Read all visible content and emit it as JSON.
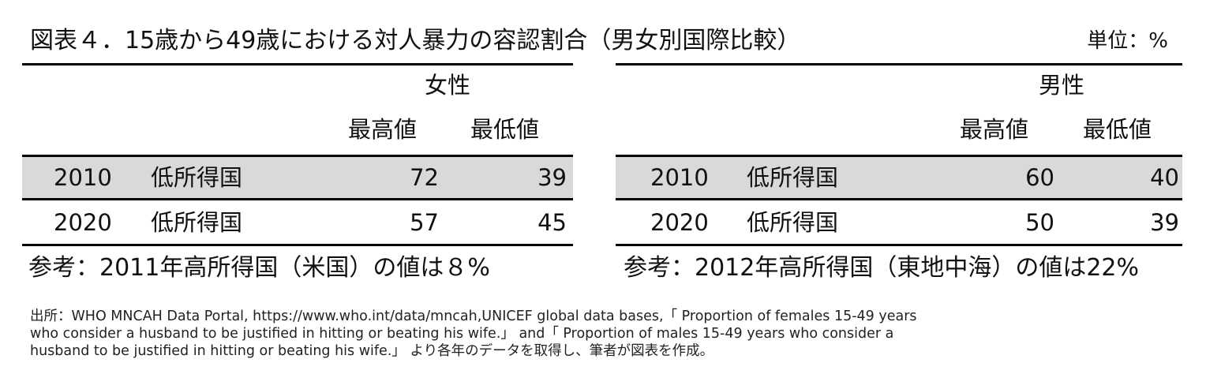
{
  "title": "図表４．15歳から49歳における対人暴力の容認割合（男女別国際比較）",
  "unit": "単位：%",
  "female": {
    "gender": "女性",
    "col_high": "最高値",
    "col_low": "最低値",
    "rows": [
      {
        "year": "2010",
        "category": "低所得国",
        "high": "72",
        "low": "39"
      },
      {
        "year": "2020",
        "category": "低所得国",
        "high": "57",
        "low": "45"
      }
    ],
    "reference": "参考：2011年高所得国（米国）の値は８%"
  },
  "male": {
    "gender": "男性",
    "col_high": "最高値",
    "col_low": "最低値",
    "rows": [
      {
        "year": "2010",
        "category": "低所得国",
        "high": "60",
        "low": "40"
      },
      {
        "year": "2020",
        "category": "低所得国",
        "high": "50",
        "low": "39"
      }
    ],
    "reference": "参考：2012年高所得国（東地中海）の値は22%"
  },
  "source_lines": [
    "出所：WHO MNCAH Data Portal, https://www.who.int/data/mncah,UNICEF global data bases,「 Proportion of females 15-49 years",
    "who consider a husband to be justified in hitting or beating his wife.」 and「 Proportion of males  15-49 years who consider a",
    "husband to be justified in hitting or beating his wife.」 より各年のデータを取得し、筆者が図表を作成。"
  ]
}
